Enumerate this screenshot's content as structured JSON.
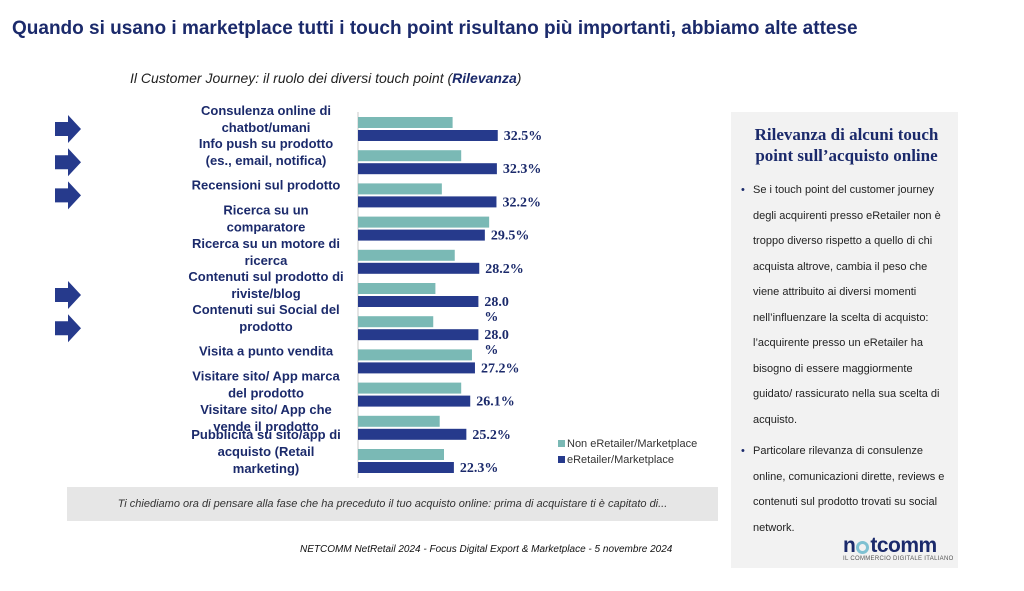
{
  "slide": {
    "title": "Quando si usano i marketplace tutti i touch point risultano più importanti, abbiamo alte attese",
    "subtitle_prefix": "Il Customer Journey: il ruolo dei diversi touch point (",
    "subtitle_bold": "Rilevanza",
    "subtitle_suffix": ")"
  },
  "chart_data": {
    "type": "bar",
    "orientation": "horizontal",
    "categories": [
      [
        "Consulenza online di",
        "chatbot/umani"
      ],
      [
        "Info push su prodotto",
        "(es., email, notifica)"
      ],
      [
        "Recensioni sul prodotto"
      ],
      [
        "Ricerca su un",
        "comparatore"
      ],
      [
        "Ricerca su un motore di",
        "ricerca"
      ],
      [
        "Contenuti sul prodotto di",
        "riviste/blog"
      ],
      [
        "Contenuti sui Social del",
        "prodotto"
      ],
      [
        "Visita a punto vendita"
      ],
      [
        "Visitare sito/ App marca",
        "del prodotto"
      ],
      [
        "Visitare sito/ App che",
        "vende il prodotto"
      ],
      [
        "Pubblicità su sito/app di",
        "acquisto (Retail",
        "marketing)"
      ]
    ],
    "series": [
      {
        "name": "Non eRetailer/Marketplace",
        "color": "#7ab9b5",
        "values": [
          22.0,
          24.0,
          19.5,
          30.5,
          22.5,
          18.0,
          17.5,
          26.5,
          24.0,
          19.0,
          20.0
        ]
      },
      {
        "name": "eRetailer/Marketplace",
        "color": "#263a8c",
        "values": [
          32.5,
          32.3,
          32.2,
          29.5,
          28.2,
          28.0,
          28.0,
          27.2,
          26.1,
          25.2,
          22.3
        ]
      }
    ],
    "value_labels": [
      [
        "32.5%"
      ],
      [
        "32.3%"
      ],
      [
        "32.2%"
      ],
      [
        "29.5%"
      ],
      [
        "28.2%"
      ],
      [
        "28.0",
        "%"
      ],
      [
        "28.0",
        "%"
      ],
      [
        "27.2%"
      ],
      [
        "26.1%"
      ],
      [
        "25.2%"
      ],
      [
        "22.3%"
      ]
    ],
    "highlighted_rows": [
      0,
      1,
      2,
      5,
      6
    ],
    "legend_position": "bottom-right"
  },
  "question": "Ti chiediamo ora di pensare alla fase che ha preceduto il tuo acquisto online: prima di acquistare ti è capitato di...",
  "footer": "NETCOMM NetRetail 2024 - Focus Digital Export & Marketplace - 5 novembre 2024",
  "side_panel": {
    "title": "Rilevanza di alcuni touch point sull’acquisto online",
    "bullets": [
      "Se i touch point del customer journey degli acquirenti presso eRetailer non è troppo diverso rispetto a quello di chi acquista altrove, cambia il peso che viene attribuito ai diversi momenti nell’influenzare la scelta di acquisto: l’acquirente presso un eRetailer ha bisogno di essere maggiormente guidato/ rassicurato nella sua scelta di acquisto.",
      "Particolare rilevanza di consulenze online, comunicazioni dirette, reviews e contenuti sul prodotto trovati su social network."
    ]
  },
  "logo": {
    "word_pre": "n",
    "word_post": "tcomm",
    "tagline": "IL COMMERCIO DIGITALE ITALIANO"
  }
}
